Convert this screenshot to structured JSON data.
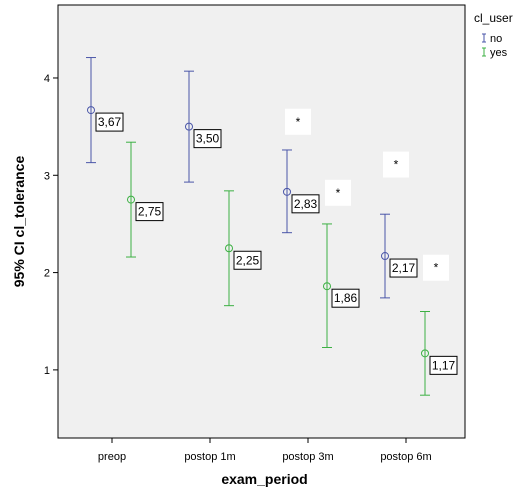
{
  "chart_data": {
    "type": "errorbar",
    "xlabel": "exam_period",
    "ylabel": "95% CI cl_tolerance",
    "categories": [
      "preop",
      "postop 1m",
      "postop 3m",
      "postop 6m"
    ],
    "ylim": [
      0.3,
      4.75
    ],
    "yticks": [
      1,
      2,
      3,
      4
    ],
    "legend": {
      "title": "cl_user",
      "position": "right"
    },
    "series": [
      {
        "name": "no",
        "color": "#4a56a8",
        "means": [
          3.67,
          3.5,
          2.83,
          2.17
        ],
        "lower": [
          3.13,
          2.93,
          2.41,
          1.74
        ],
        "upper": [
          4.21,
          4.07,
          3.26,
          2.6
        ],
        "labels": [
          "3,67",
          "3,50",
          "2,83",
          "2,17"
        ]
      },
      {
        "name": "yes",
        "color": "#3cb043",
        "means": [
          2.75,
          2.25,
          1.86,
          1.17
        ],
        "lower": [
          2.16,
          1.66,
          1.23,
          0.74
        ],
        "upper": [
          3.34,
          2.84,
          2.5,
          1.6
        ],
        "labels": [
          "2,75",
          "2,25",
          "1,86",
          "1,17"
        ]
      }
    ],
    "annotations": [
      {
        "text": "*",
        "category": 2,
        "series": 0,
        "y": 3.55
      },
      {
        "text": "*",
        "category": 2,
        "series": 1,
        "y": 2.82
      },
      {
        "text": "*",
        "category": 3,
        "series": 0,
        "y": 3.11
      },
      {
        "text": "*",
        "category": 3,
        "series": 1,
        "y": 2.05
      }
    ]
  }
}
